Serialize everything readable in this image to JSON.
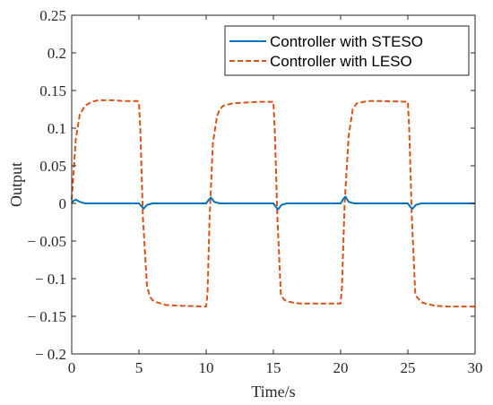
{
  "chart_data": {
    "type": "line",
    "title": "",
    "xlabel": "Time/s",
    "ylabel": "Output",
    "xlim": [
      0,
      30
    ],
    "ylim": [
      -0.2,
      0.25
    ],
    "xticks": [
      0,
      5,
      10,
      15,
      20,
      25,
      30
    ],
    "xtick_labels": [
      "0",
      "5",
      "10",
      "15",
      "20",
      "25",
      "30"
    ],
    "yticks": [
      -0.2,
      -0.15,
      -0.1,
      -0.05,
      0,
      0.05,
      0.1,
      0.15,
      0.2,
      0.25
    ],
    "ytick_labels": [
      "− 0.2",
      "− 0.15",
      "− 0.1",
      "− 0.05",
      "0",
      "0.05",
      "0.1",
      "0.15",
      "0.2",
      "0.25"
    ],
    "grid": false,
    "legend_position": "top-right",
    "series": [
      {
        "name": "Controller with STESO",
        "color": "#0072BD",
        "style": "solid",
        "x": [
          0,
          0.1,
          0.3,
          0.6,
          1.0,
          5.0,
          5.2,
          5.35,
          5.6,
          6.0,
          10.0,
          10.2,
          10.35,
          10.6,
          11.0,
          15.0,
          15.2,
          15.35,
          15.6,
          16.0,
          20.0,
          20.2,
          20.35,
          20.6,
          21.0,
          25.0,
          25.2,
          25.35,
          25.6,
          26.0,
          30.0
        ],
        "y": [
          0,
          0.003,
          0.005,
          0.002,
          0,
          0,
          -0.004,
          -0.007,
          -0.002,
          0,
          0,
          0.005,
          0.008,
          0.002,
          0,
          0,
          -0.005,
          -0.008,
          -0.002,
          0,
          0,
          0.006,
          0.009,
          0.002,
          0,
          0,
          -0.005,
          -0.007,
          -0.002,
          0,
          0
        ]
      },
      {
        "name": "Controller with LESO",
        "color": "#D95319",
        "style": "dashed",
        "x": [
          0,
          0.1,
          0.3,
          0.6,
          1.0,
          1.5,
          2.0,
          3.0,
          4.0,
          4.9,
          5.0,
          5.1,
          5.3,
          5.6,
          5.75,
          5.85,
          6.1,
          6.6,
          7.0,
          8.0,
          10.0,
          10.1,
          10.25,
          10.5,
          10.8,
          11.0,
          11.3,
          12.0,
          13.0,
          14.0,
          15.0,
          15.1,
          15.3,
          15.55,
          15.65,
          15.8,
          16.0,
          16.5,
          17.0,
          19.0,
          20.0,
          20.1,
          20.3,
          20.6,
          20.9,
          21.2,
          22.0,
          23.0,
          25.0,
          25.1,
          25.3,
          25.55,
          25.65,
          25.85,
          26.1,
          27.0,
          28.0,
          30.0
        ],
        "y": [
          0.005,
          0.03,
          0.085,
          0.118,
          0.13,
          0.135,
          0.137,
          0.137,
          0.136,
          0.136,
          0.134,
          0.1,
          -0.02,
          -0.11,
          -0.12,
          -0.125,
          -0.13,
          -0.133,
          -0.135,
          -0.136,
          -0.137,
          -0.12,
          -0.02,
          0.08,
          0.115,
          0.125,
          0.13,
          0.133,
          0.134,
          0.135,
          0.135,
          0.1,
          -0.02,
          -0.12,
          -0.124,
          -0.128,
          -0.13,
          -0.132,
          -0.133,
          -0.133,
          -0.133,
          -0.11,
          0.0,
          0.09,
          0.125,
          0.133,
          0.136,
          0.136,
          0.135,
          0.1,
          -0.02,
          -0.12,
          -0.124,
          -0.128,
          -0.132,
          -0.136,
          -0.137,
          -0.137
        ]
      }
    ]
  }
}
